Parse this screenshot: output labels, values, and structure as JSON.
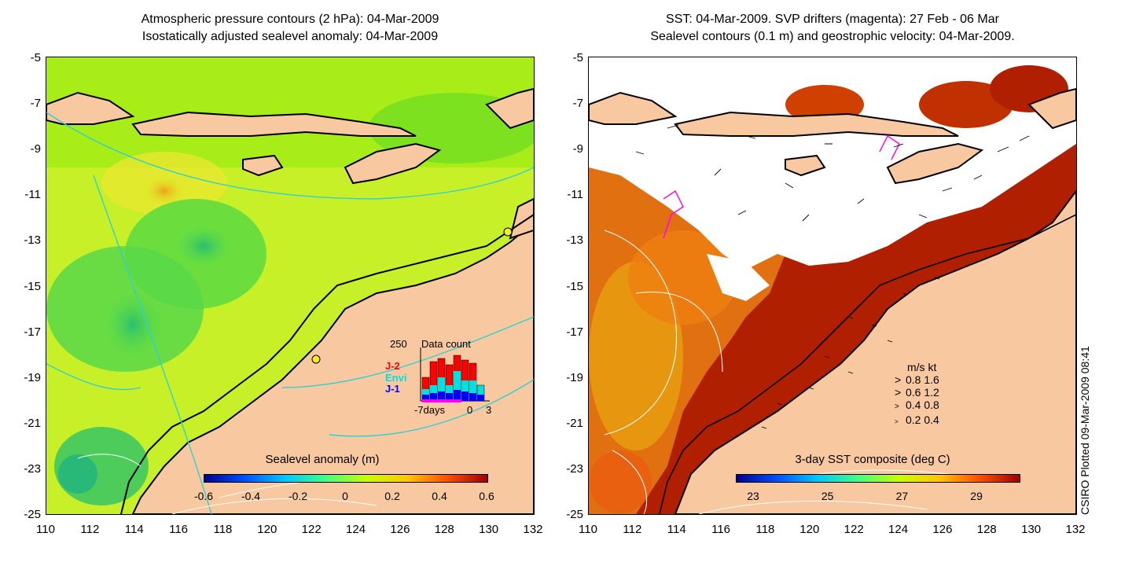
{
  "left_panel": {
    "title_line1": "Atmospheric pressure contours (2 hPa): 04-Mar-2009",
    "title_line2": "Isostatically adjusted sealevel anomaly: 04-Mar-2009",
    "colorbar_title": "Sealevel anomaly (m)",
    "colorbar_ticks": [
      "-0.6",
      "-0.4",
      "-0.2",
      "0",
      "0.2",
      "0.4",
      "0.6"
    ],
    "colorbar_colors": [
      "#00008f",
      "#0050ff",
      "#00c8ff",
      "#40ff80",
      "#c8ff00",
      "#ffc800",
      "#ff5000",
      "#9f0000"
    ],
    "inset": {
      "count_label": "250",
      "title": "Data count",
      "x_ticks": [
        "-7days",
        "0",
        "3"
      ],
      "legend": [
        {
          "name": "J-2",
          "color": "#ff0000"
        },
        {
          "name": "Envi",
          "color": "#00e0e0"
        },
        {
          "name": "J-1",
          "color": "#0000ff"
        }
      ]
    }
  },
  "right_panel": {
    "title_line1": "SST: 04-Mar-2009. SVP drifters (magenta): 27 Feb - 06 Mar",
    "title_line2": "Sealevel contours (0.1 m) and geostrophic velocity: 04-Mar-2009.",
    "colorbar_title": "3-day SST composite (deg C)",
    "colorbar_ticks": [
      "23",
      "25",
      "27",
      "29"
    ],
    "colorbar_colors": [
      "#00008f",
      "#0050ff",
      "#00c8ff",
      "#40ff80",
      "#c8ff00",
      "#ffc800",
      "#ff5000",
      "#9f0000"
    ],
    "velocity_legend": {
      "header": "m/s  kt",
      "rows": [
        "0.8  1.6",
        "0.6  1.2",
        "0.4  0.8",
        "0.2  0.4"
      ]
    }
  },
  "axes": {
    "y_ticks": [
      "-5",
      "-7",
      "-9",
      "-11",
      "-13",
      "-15",
      "-17",
      "-19",
      "-21",
      "-23",
      "-25"
    ],
    "x_ticks": [
      "110",
      "112",
      "114",
      "116",
      "118",
      "120",
      "122",
      "124",
      "126",
      "128",
      "130",
      "132"
    ]
  },
  "credit": "CSIRO Plotted 09-Mar-2009 08:41",
  "colors": {
    "land": "#f8c8a0",
    "no_data": "#ffffff",
    "coast": "#000000"
  }
}
